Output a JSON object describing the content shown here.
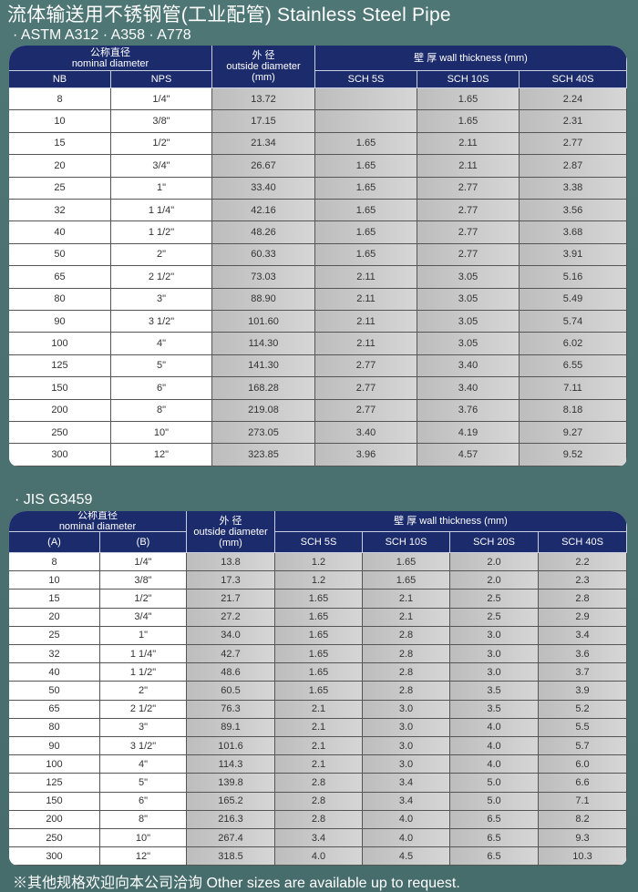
{
  "title": "流体输送用不锈钢管(工业配管) Stainless Steel Pipe",
  "table1": {
    "standard": "· ASTM A312   · A358   · A778",
    "headers": {
      "nominal_cn": "公称直径",
      "nominal_en": "nominal diameter",
      "od_cn": "外 径",
      "od_en": "outside diameter",
      "od_unit": "(mm)",
      "wall": "壁 厚 wall thickness  (mm)",
      "col1": "NB",
      "col2": "NPS",
      "schedules": [
        "SCH 5S",
        "SCH 10S",
        "SCH 40S"
      ]
    },
    "rows": [
      [
        "8",
        "1/4\"",
        "13.72",
        "",
        "1.65",
        "2.24"
      ],
      [
        "10",
        "3/8\"",
        "17.15",
        "",
        "1.65",
        "2.31"
      ],
      [
        "15",
        "1/2\"",
        "21.34",
        "1.65",
        "2.11",
        "2.77"
      ],
      [
        "20",
        "3/4\"",
        "26.67",
        "1.65",
        "2.11",
        "2.87"
      ],
      [
        "25",
        "1\"",
        "33.40",
        "1.65",
        "2.77",
        "3.38"
      ],
      [
        "32",
        "1 1/4\"",
        "42.16",
        "1.65",
        "2.77",
        "3.56"
      ],
      [
        "40",
        "1 1/2\"",
        "48.26",
        "1.65",
        "2.77",
        "3.68"
      ],
      [
        "50",
        "2\"",
        "60.33",
        "1.65",
        "2.77",
        "3.91"
      ],
      [
        "65",
        "2 1/2\"",
        "73.03",
        "2.11",
        "3.05",
        "5.16"
      ],
      [
        "80",
        "3\"",
        "88.90",
        "2.11",
        "3.05",
        "5.49"
      ],
      [
        "90",
        "3 1/2\"",
        "101.60",
        "2.11",
        "3.05",
        "5.74"
      ],
      [
        "100",
        "4\"",
        "114.30",
        "2.11",
        "3.05",
        "6.02"
      ],
      [
        "125",
        "5\"",
        "141.30",
        "2.77",
        "3.40",
        "6.55"
      ],
      [
        "150",
        "6\"",
        "168.28",
        "2.77",
        "3.40",
        "7.11"
      ],
      [
        "200",
        "8\"",
        "219.08",
        "2.77",
        "3.76",
        "8.18"
      ],
      [
        "250",
        "10\"",
        "273.05",
        "3.40",
        "4.19",
        "9.27"
      ],
      [
        "300",
        "12\"",
        "323.85",
        "3.96",
        "4.57",
        "9.52"
      ]
    ]
  },
  "table2": {
    "standard": "· JIS  G3459",
    "headers": {
      "nominal_cn": "公称直径",
      "nominal_en": "nominal diameter",
      "od_cn": "外 径",
      "od_en": "outside diameter",
      "od_unit": "(mm)",
      "wall": "壁 厚 wall thickness  (mm)",
      "col1": "(A)",
      "col2": "(B)",
      "schedules": [
        "SCH 5S",
        "SCH 10S",
        "SCH 20S",
        "SCH 40S"
      ]
    },
    "rows": [
      [
        "8",
        "1/4\"",
        "13.8",
        "1.2",
        "1.65",
        "2.0",
        "2.2"
      ],
      [
        "10",
        "3/8\"",
        "17.3",
        "1.2",
        "1.65",
        "2.0",
        "2.3"
      ],
      [
        "15",
        "1/2\"",
        "21.7",
        "1.65",
        "2.1",
        "2.5",
        "2.8"
      ],
      [
        "20",
        "3/4\"",
        "27.2",
        "1.65",
        "2.1",
        "2.5",
        "2.9"
      ],
      [
        "25",
        "1\"",
        "34.0",
        "1.65",
        "2.8",
        "3.0",
        "3.4"
      ],
      [
        "32",
        "1 1/4\"",
        "42.7",
        "1.65",
        "2.8",
        "3.0",
        "3.6"
      ],
      [
        "40",
        "1 1/2\"",
        "48.6",
        "1.65",
        "2.8",
        "3.0",
        "3.7"
      ],
      [
        "50",
        "2\"",
        "60.5",
        "1.65",
        "2.8",
        "3.5",
        "3.9"
      ],
      [
        "65",
        "2 1/2\"",
        "76.3",
        "2.1",
        "3.0",
        "3.5",
        "5.2"
      ],
      [
        "80",
        "3\"",
        "89.1",
        "2.1",
        "3.0",
        "4.0",
        "5.5"
      ],
      [
        "90",
        "3 1/2\"",
        "101.6",
        "2.1",
        "3.0",
        "4.0",
        "5.7"
      ],
      [
        "100",
        "4\"",
        "114.3",
        "2.1",
        "3.0",
        "4.0",
        "6.0"
      ],
      [
        "125",
        "5\"",
        "139.8",
        "2.8",
        "3.4",
        "5.0",
        "6.6"
      ],
      [
        "150",
        "6\"",
        "165.2",
        "2.8",
        "3.4",
        "5.0",
        "7.1"
      ],
      [
        "200",
        "8\"",
        "216.3",
        "2.8",
        "4.0",
        "6.5",
        "8.2"
      ],
      [
        "250",
        "10\"",
        "267.4",
        "3.4",
        "4.0",
        "6.5",
        "9.3"
      ],
      [
        "300",
        "12\"",
        "318.5",
        "4.0",
        "4.5",
        "6.5",
        "10.3"
      ]
    ]
  },
  "note": "※其他规格欢迎向本公司洽询  Other sizes are available up to request.",
  "colors": {
    "background": "#4a706f",
    "header": "#1c2b6b",
    "shaded_cell": "#c8c8c8"
  }
}
